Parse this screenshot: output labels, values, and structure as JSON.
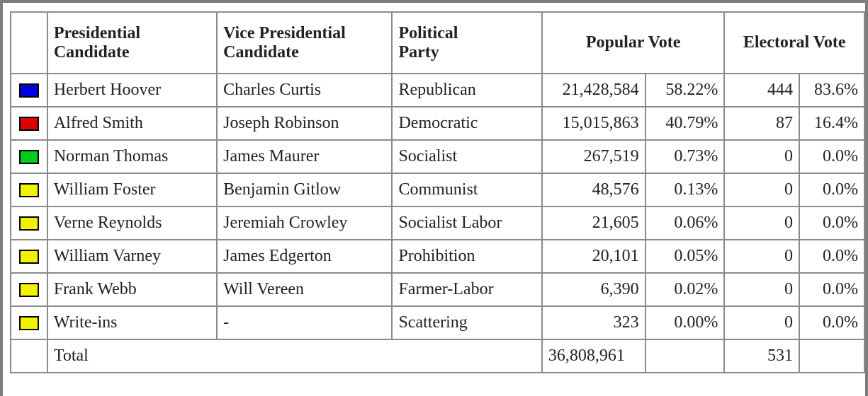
{
  "headers": {
    "presidential": "Presidential Candidate",
    "vice_presidential": "Vice Presidential Candidate",
    "party": "Political Party",
    "popular": "Popular Vote",
    "electoral": "Electoral Vote"
  },
  "rows": [
    {
      "color": "#0000dd",
      "pres": "Herbert Hoover",
      "vp": "Charles Curtis",
      "party": "Republican",
      "pop": "21,428,584",
      "pop_pct": "58.22%",
      "elec": "444",
      "elec_pct": "83.6%"
    },
    {
      "color": "#dd0000",
      "pres": "Alfred Smith",
      "vp": "Joseph Robinson",
      "party": "Democratic",
      "pop": "15,015,863",
      "pop_pct": "40.79%",
      "elec": "87",
      "elec_pct": "16.4%"
    },
    {
      "color": "#00cc22",
      "pres": "Norman Thomas",
      "vp": "James Maurer",
      "party": "Socialist",
      "pop": "267,519",
      "pop_pct": "0.73%",
      "elec": "0",
      "elec_pct": "0.0%"
    },
    {
      "color": "#f2f200",
      "pres": "William Foster",
      "vp": "Benjamin Gitlow",
      "party": "Communist",
      "pop": "48,576",
      "pop_pct": "0.13%",
      "elec": "0",
      "elec_pct": "0.0%"
    },
    {
      "color": "#f2f200",
      "pres": "Verne Reynolds",
      "vp": "Jeremiah Crowley",
      "party": "Socialist Labor",
      "pop": "21,605",
      "pop_pct": "0.06%",
      "elec": "0",
      "elec_pct": "0.0%"
    },
    {
      "color": "#f2f200",
      "pres": "William Varney",
      "vp": "James Edgerton",
      "party": "Prohibition",
      "pop": "20,101",
      "pop_pct": "0.05%",
      "elec": "0",
      "elec_pct": "0.0%"
    },
    {
      "color": "#f2f200",
      "pres": "Frank Webb",
      "vp": "Will Vereen",
      "party": "Farmer-Labor",
      "pop": "6,390",
      "pop_pct": "0.02%",
      "elec": "0",
      "elec_pct": "0.0%"
    },
    {
      "color": "#f2f200",
      "pres": "Write-ins",
      "vp": "-",
      "party": "Scattering",
      "pop": "323",
      "pop_pct": "0.00%",
      "elec": "0",
      "elec_pct": "0.0%"
    }
  ],
  "total": {
    "label": "Total",
    "pop": "36,808,961",
    "elec": "531"
  }
}
